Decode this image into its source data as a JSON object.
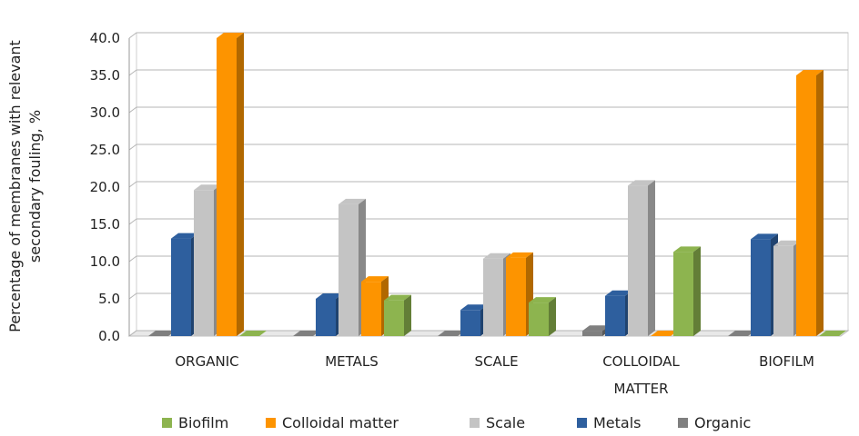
{
  "chart_data": {
    "type": "bar",
    "ylabel_lines": [
      "Percentage of membranes with relevant",
      "secondary fouling, %"
    ],
    "ylim": [
      0,
      40
    ],
    "yticks": [
      "0.0",
      "5.0",
      "10.0",
      "15.0",
      "20.0",
      "25.0",
      "30.0",
      "35.0",
      "40.0"
    ],
    "grid": true,
    "legend_position": "bottom",
    "categories": [
      [
        "ORGANIC"
      ],
      [
        "METALS"
      ],
      [
        "SCALE"
      ],
      [
        "COLLOIDAL",
        "MATTER"
      ],
      [
        "BIOFILM"
      ]
    ],
    "bar_order": [
      "Organic",
      "Metals",
      "Scale",
      "Colloidal matter",
      "Biofilm"
    ],
    "series": [
      {
        "name": "Biofilm",
        "color": "#8db44f",
        "values": [
          0.0,
          4.8,
          4.5,
          11.3,
          0.0
        ]
      },
      {
        "name": "Colloidal matter",
        "color": "#fd9400",
        "values": [
          40.0,
          7.3,
          10.5,
          0.0,
          35.0
        ]
      },
      {
        "name": "Scale",
        "color": "#c4c4c4",
        "values": [
          19.6,
          17.7,
          10.4,
          20.2,
          12.1
        ]
      },
      {
        "name": "Metals",
        "color": "#2e5f9e",
        "values": [
          13.1,
          5.0,
          3.5,
          5.4,
          13.0
        ]
      },
      {
        "name": "Organic",
        "color": "#7f7f7f",
        "values": [
          0.0,
          0.0,
          0.0,
          0.7,
          0.0
        ]
      }
    ]
  }
}
